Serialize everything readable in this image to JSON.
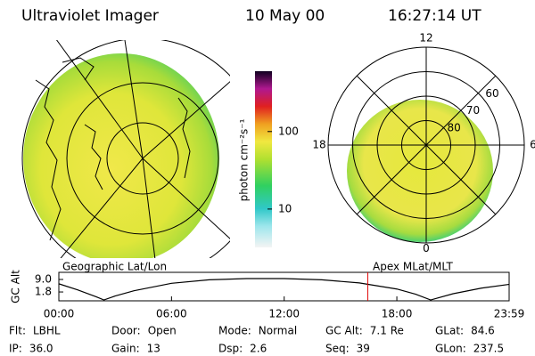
{
  "header": {
    "title": "Ultraviolet Imager",
    "date": "10 May 00",
    "time": "16:27:14 UT"
  },
  "colorbar": {
    "label": "photon cm⁻²s⁻¹",
    "log": true,
    "ylim": [
      3.2,
      600
    ],
    "yticks": [
      10,
      100
    ]
  },
  "left_map": {
    "label": "Geographic Lat/Lon"
  },
  "right_map": {
    "label": "Apex MLat/MLT",
    "lat_ticks": [
      60,
      70,
      80
    ],
    "mlt_ticks": [
      12,
      6,
      0,
      18
    ]
  },
  "chart_data": {
    "type": "line",
    "ylabel": "GC Alt",
    "x": [
      0,
      1,
      2,
      2.4,
      3,
      4,
      6,
      8,
      10,
      12,
      14,
      16,
      18,
      19,
      19.8,
      21,
      22.5,
      24
    ],
    "values": [
      6.5,
      3.0,
      -1.0,
      -2.8,
      -0.5,
      2.5,
      6.8,
      8.8,
      9.5,
      9.5,
      8.8,
      7.0,
      3.5,
      0.5,
      -2.8,
      0.8,
      4.0,
      6.2
    ],
    "color": "#000000",
    "xlim": [
      0,
      23.98
    ],
    "ylim": [
      -3.3,
      13.1
    ],
    "xticks": [
      {
        "value": 0,
        "label": "00:00"
      },
      {
        "value": 6,
        "label": "06:00"
      },
      {
        "value": 12,
        "label": "12:00"
      },
      {
        "value": 18,
        "label": "18:00"
      },
      {
        "value": 23.98,
        "label": "23:59"
      }
    ],
    "yticks": [
      {
        "value": 9,
        "label": "9.0"
      },
      1.8
    ],
    "marker": 16.45,
    "marker_color": "#e00000"
  },
  "status": [
    {
      "label": "Flt:",
      "value": "LBHL"
    },
    {
      "label": "Door:",
      "value": "Open"
    },
    {
      "label": "Mode:",
      "value": "Normal"
    },
    {
      "label": "GC Alt:",
      "value": "7.1 Re"
    },
    {
      "label": "GLat:",
      "value": "84.6"
    },
    {
      "label": "IP:",
      "value": "36.0"
    },
    {
      "label": "Gain:",
      "value": "13"
    },
    {
      "label": "Dsp:",
      "value": "2.6"
    },
    {
      "label": "Seq:",
      "value": "39"
    },
    {
      "label": "GLon:",
      "value": "237.5"
    }
  ]
}
